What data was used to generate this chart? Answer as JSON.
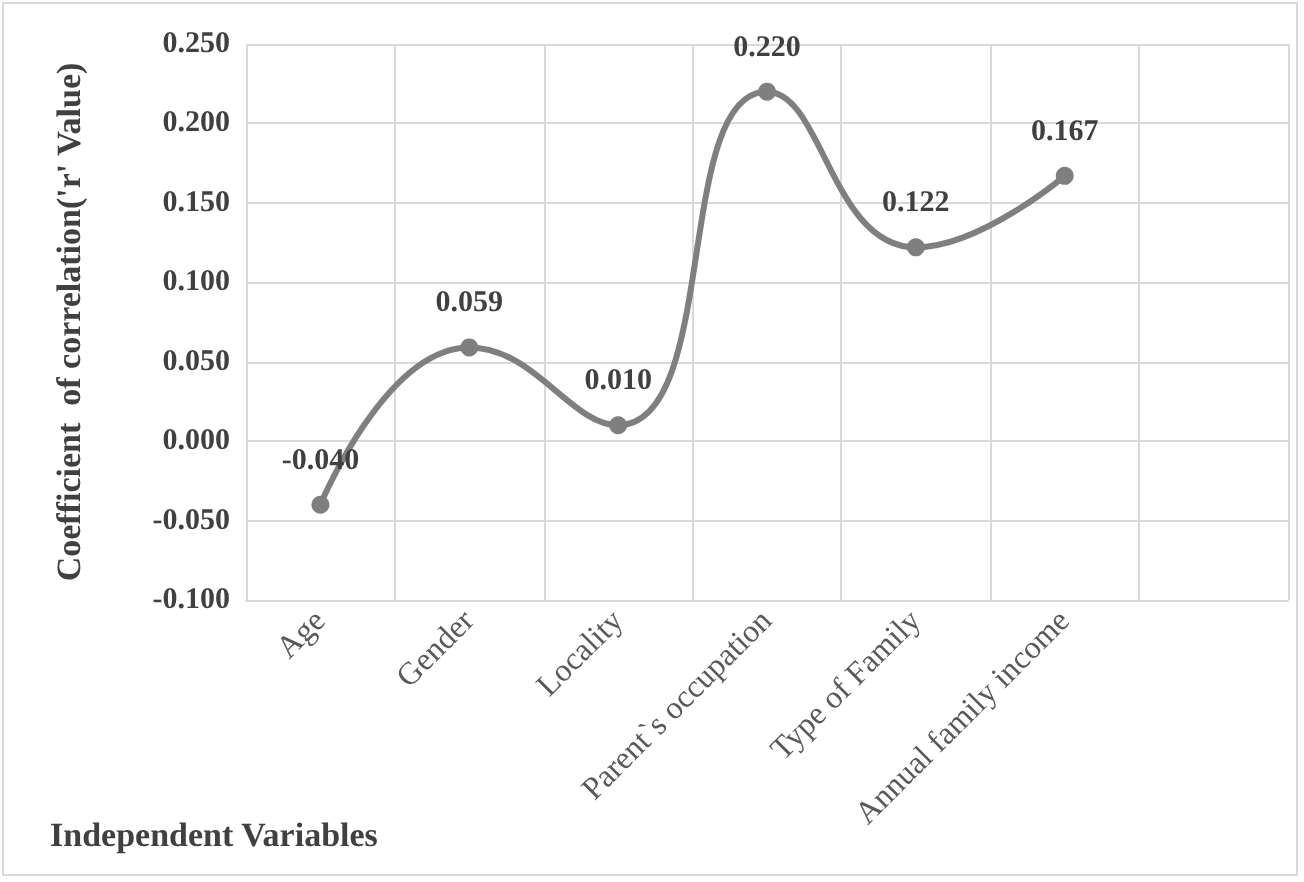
{
  "chart_data": {
    "type": "line",
    "xlabel": "Independent Variables",
    "ylabel": "Coefficient  of correlation('r' Value)",
    "categories": [
      "Age",
      "Gender",
      "Locality",
      "Parent`s occupation",
      "Type of Family",
      "Annual family income",
      null
    ],
    "series": [
      {
        "color": "#7f7f7f",
        "values": [
          -0.04,
          0.059,
          0.01,
          0.22,
          0.122,
          0.167,
          null
        ],
        "value_labels": [
          "-0.040",
          "0.059",
          "0.010",
          "0.220",
          "0.122",
          "0.167",
          null
        ]
      }
    ],
    "ylim": [
      -0.1,
      0.25
    ],
    "yticks": [
      {
        "value": -0.1,
        "label": "-0.100"
      },
      {
        "value": -0.05,
        "label": "-0.050"
      },
      {
        "value": 0,
        "label": "0.000"
      },
      {
        "value": 0.05,
        "label": "0.050"
      },
      {
        "value": 0.1,
        "label": "0.100"
      },
      {
        "value": 0.15,
        "label": "0.150"
      },
      {
        "value": 0.2,
        "label": "0.200"
      },
      {
        "value": 0.25,
        "label": "0.250"
      }
    ],
    "grid": true,
    "marker": "circle",
    "line_style": "solid"
  }
}
